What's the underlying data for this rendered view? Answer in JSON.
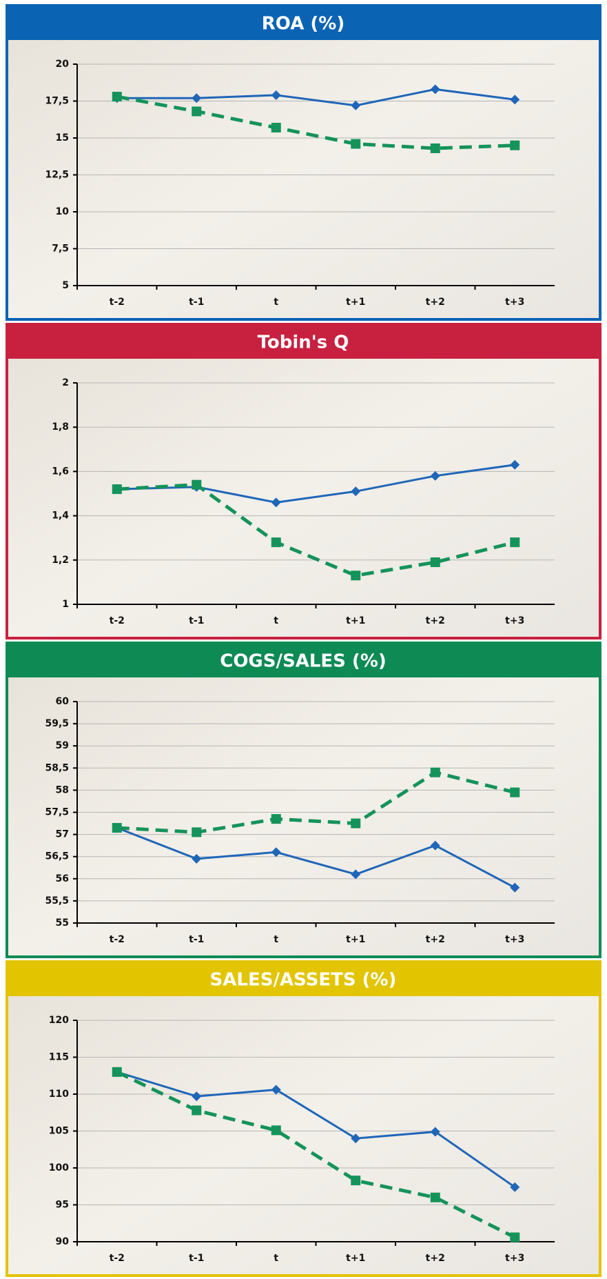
{
  "chart_data": [
    {
      "type": "line",
      "title": "ROA (%)",
      "panel_color": "#0b63b3",
      "categories": [
        "t-2",
        "t-1",
        "t",
        "t+1",
        "t+2",
        "t+3"
      ],
      "series": [
        {
          "color": "#1f66b8",
          "line_style": "solid",
          "marker": "diamond",
          "values": [
            17.7,
            17.7,
            17.9,
            17.2,
            18.3,
            17.6
          ]
        },
        {
          "color": "#14935a",
          "line_style": "dashed",
          "marker": "square",
          "values": [
            17.8,
            16.8,
            15.7,
            14.6,
            14.3,
            14.5
          ]
        }
      ],
      "ylim": [
        5,
        20
      ],
      "yticks": [
        5,
        {
          "value": 7.5,
          "label": "7,5"
        },
        10,
        {
          "value": 12.5,
          "label": "12,5"
        },
        15,
        {
          "value": 17.5,
          "label": "17,5"
        },
        20
      ],
      "grid": true
    },
    {
      "type": "line",
      "title": "Tobin's Q",
      "panel_color": "#c8203f",
      "categories": [
        "t-2",
        "t-1",
        "t",
        "t+1",
        "t+2",
        "t+3"
      ],
      "series": [
        {
          "color": "#1f66b8",
          "line_style": "solid",
          "marker": "diamond",
          "values": [
            1.52,
            1.53,
            1.46,
            1.51,
            1.58,
            1.63
          ]
        },
        {
          "color": "#14935a",
          "line_style": "dashed",
          "marker": "square",
          "values": [
            1.52,
            1.54,
            1.28,
            1.13,
            1.19,
            1.28
          ]
        }
      ],
      "ylim": [
        1,
        2
      ],
      "yticks": [
        1,
        {
          "value": 1.2,
          "label": "1,2"
        },
        {
          "value": 1.4,
          "label": "1,4"
        },
        {
          "value": 1.6,
          "label": "1,6"
        },
        {
          "value": 1.8,
          "label": "1,8"
        },
        2
      ],
      "grid": true
    },
    {
      "type": "line",
      "title": "COGS/SALES (%)",
      "panel_color": "#0e8a55",
      "categories": [
        "t-2",
        "t-1",
        "t",
        "t+1",
        "t+2",
        "t+3"
      ],
      "series": [
        {
          "color": "#1f66b8",
          "line_style": "solid",
          "marker": "diamond",
          "values": [
            57.15,
            56.45,
            56.6,
            56.1,
            56.75,
            55.8
          ]
        },
        {
          "color": "#14935a",
          "line_style": "dashed",
          "marker": "square",
          "values": [
            57.15,
            57.05,
            57.35,
            57.25,
            58.4,
            57.95
          ]
        }
      ],
      "ylim": [
        55,
        60
      ],
      "yticks": [
        55,
        {
          "value": 55.5,
          "label": "55,5"
        },
        56,
        {
          "value": 56.5,
          "label": "56,5"
        },
        57,
        {
          "value": 57.5,
          "label": "57,5"
        },
        58,
        {
          "value": 58.5,
          "label": "58,5"
        },
        59,
        {
          "value": 59.5,
          "label": "59,5"
        },
        60
      ],
      "grid": true
    },
    {
      "type": "line",
      "title": "SALES/ASSETS (%)",
      "panel_color": "#e2c400",
      "categories": [
        "t-2",
        "t-1",
        "t",
        "t+1",
        "t+2",
        "t+3"
      ],
      "series": [
        {
          "color": "#1f66b8",
          "line_style": "solid",
          "marker": "diamond",
          "values": [
            113,
            109.7,
            110.6,
            104,
            104.9,
            97.4
          ]
        },
        {
          "color": "#14935a",
          "line_style": "dashed",
          "marker": "square",
          "values": [
            113,
            107.8,
            105.1,
            98.3,
            96,
            90.6
          ]
        }
      ],
      "ylim": [
        90,
        120
      ],
      "yticks": [
        90,
        95,
        100,
        105,
        110,
        115,
        120
      ],
      "grid": true
    }
  ]
}
